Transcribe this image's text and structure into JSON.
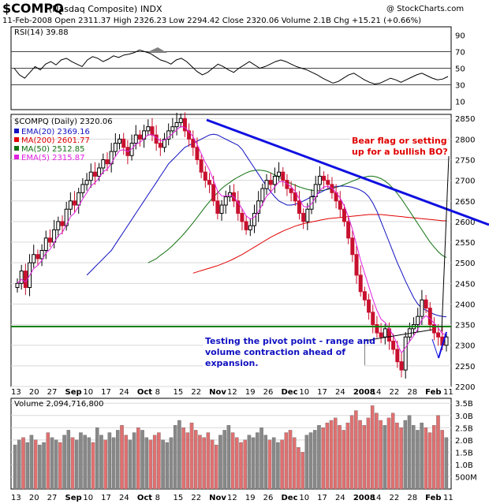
{
  "header": {
    "symbol": "$COMPQ",
    "name": "(Nasdaq Composite)",
    "exchange": "INDX",
    "watermark": "@ StockCharts.com",
    "ohlc_line": "11-Feb-2008   Open 2311.37   High 2326.23   Low 2294.42   Close 2320.06   Volume 2.1B   Chg +15.21 (+0.66%)",
    "accent_up": "#000000",
    "accent_down": "#c8102e"
  },
  "rsi_panel": {
    "label": "RSI(14) 39.88",
    "levels": [
      "90",
      "70",
      "50",
      "30",
      "10"
    ],
    "values": [
      50,
      42,
      38,
      45,
      52,
      48,
      55,
      58,
      54,
      60,
      62,
      58,
      55,
      52,
      60,
      64,
      62,
      58,
      61,
      65,
      63,
      66,
      67,
      69,
      72,
      70,
      68,
      64,
      60,
      58,
      55,
      60,
      62,
      58,
      52,
      46,
      42,
      45,
      50,
      55,
      52,
      48,
      45,
      50,
      54,
      58,
      54,
      50,
      52,
      55,
      58,
      60,
      58,
      55,
      52,
      50,
      48,
      45,
      42,
      38,
      35,
      32,
      34,
      38,
      42,
      44,
      40,
      36,
      33,
      31,
      32,
      35,
      38,
      36,
      33,
      36,
      39,
      42,
      44,
      41,
      38,
      36,
      37,
      40
    ]
  },
  "price_panel": {
    "label": "$COMPQ (Daily) 2320.06",
    "legend": [
      {
        "text": "EMA(20) 2369.16",
        "color": "#1010c0"
      },
      {
        "text": "MA(200) 2601.77",
        "color": "#e00000"
      },
      {
        "text": "MA(50) 2512.85",
        "color": "#107010"
      },
      {
        "text": "EMA(5) 2315.87",
        "color": "#e020e0"
      }
    ],
    "y_ticks": [
      "2850",
      "2800",
      "2750",
      "2700",
      "2650",
      "2600",
      "2550",
      "2500",
      "2450",
      "2400",
      "2350",
      "2300",
      "2250",
      "2200"
    ],
    "annotation_top": [
      "Bear flag or setting",
      "up for a bullish BO?"
    ],
    "annotation_bottom": [
      "Testing the pivot point - range and",
      "volume contraction ahead of",
      "expansion."
    ]
  },
  "volume_panel": {
    "label": "Volume 2,094,716,800",
    "y_ticks": [
      "3.5B",
      "3.0B",
      "2.5B",
      "2.0B",
      "1.5B",
      "1.0B",
      "500M"
    ]
  },
  "x_axis": {
    "labels": [
      "13",
      "20",
      "27",
      "Sep",
      "10",
      "17",
      "24",
      "Oct",
      "8",
      "15",
      "22",
      "Nov",
      "12",
      "19",
      "26",
      "Dec",
      "10",
      "17",
      "24",
      "2008",
      "14",
      "22",
      "28",
      "Feb",
      "11"
    ]
  },
  "chart_data": {
    "type": "candlestick",
    "x_labels": [
      "13",
      "20",
      "27",
      "Sep",
      "10",
      "17",
      "24",
      "Oct",
      "8",
      "15",
      "22",
      "Nov",
      "12",
      "19",
      "26",
      "Dec",
      "10",
      "17",
      "24",
      "2008",
      "14",
      "22",
      "28",
      "Feb",
      "11"
    ],
    "close": [
      2450,
      2480,
      2440,
      2500,
      2520,
      2510,
      2530,
      2560,
      2550,
      2580,
      2600,
      2590,
      2630,
      2650,
      2640,
      2670,
      2690,
      2700,
      2720,
      2710,
      2730,
      2750,
      2740,
      2770,
      2790,
      2800,
      2780,
      2760,
      2790,
      2810,
      2800,
      2820,
      2830,
      2810,
      2790,
      2780,
      2800,
      2820,
      2830,
      2840,
      2850,
      2820,
      2800,
      2780,
      2750,
      2720,
      2700,
      2690,
      2650,
      2620,
      2640,
      2660,
      2670,
      2650,
      2620,
      2600,
      2580,
      2590,
      2620,
      2650,
      2680,
      2700,
      2690,
      2710,
      2720,
      2700,
      2680,
      2670,
      2650,
      2620,
      2600,
      2630,
      2660,
      2690,
      2710,
      2700,
      2690,
      2670,
      2650,
      2630,
      2600,
      2560,
      2520,
      2470,
      2430,
      2410,
      2380,
      2350,
      2330,
      2320,
      2340,
      2310,
      2290,
      2260,
      2240,
      2320,
      2340,
      2350,
      2370,
      2410,
      2390,
      2350,
      2330,
      2320,
      2300,
      2320
    ],
    "ema20": [
      2470,
      2480,
      2490,
      2500,
      2510,
      2520,
      2530,
      2545,
      2560,
      2575,
      2590,
      2605,
      2620,
      2635,
      2650,
      2665,
      2680,
      2695,
      2710,
      2725,
      2740,
      2750,
      2760,
      2770,
      2780,
      2785,
      2790,
      2795,
      2800,
      2805,
      2810,
      2812,
      2810,
      2805,
      2800,
      2795,
      2790,
      2785,
      2775,
      2760,
      2745,
      2730,
      2715,
      2700,
      2685,
      2672,
      2660,
      2650,
      2645,
      2640,
      2640,
      2642,
      2645,
      2650,
      2655,
      2660,
      2665,
      2670,
      2675,
      2680,
      2683,
      2685,
      2686,
      2686,
      2685,
      2683,
      2680,
      2676,
      2670,
      2660,
      2645,
      2625,
      2600,
      2575,
      2550,
      2525,
      2500,
      2478,
      2455,
      2435,
      2415,
      2400,
      2390,
      2385,
      2380,
      2375,
      2372,
      2370,
      2369
    ],
    "ma50": [
      2500,
      2505,
      2510,
      2518,
      2525,
      2533,
      2542,
      2552,
      2562,
      2573,
      2585,
      2597,
      2610,
      2623,
      2636,
      2648,
      2660,
      2670,
      2680,
      2688,
      2695,
      2702,
      2708,
      2713,
      2718,
      2722,
      2724,
      2725,
      2724,
      2722,
      2718,
      2713,
      2708,
      2702,
      2697,
      2692,
      2688,
      2684,
      2681,
      2678,
      2676,
      2675,
      2675,
      2676,
      2678,
      2680,
      2683,
      2686,
      2690,
      2694,
      2698,
      2702,
      2706,
      2708,
      2710,
      2710,
      2708,
      2704,
      2698,
      2690,
      2680,
      2668,
      2655,
      2640,
      2625,
      2610,
      2595,
      2580,
      2565,
      2550,
      2538,
      2527,
      2518,
      2513
    ],
    "ma200": [
      2475,
      2478,
      2481,
      2484,
      2487,
      2490,
      2493,
      2497,
      2501,
      2505,
      2510,
      2515,
      2520,
      2526,
      2532,
      2538,
      2544,
      2550,
      2556,
      2562,
      2567,
      2572,
      2577,
      2581,
      2585,
      2589,
      2592,
      2595,
      2597,
      2599,
      2601,
      2603,
      2605,
      2607,
      2608,
      2609,
      2610,
      2611,
      2612,
      2613,
      2614,
      2615,
      2616,
      2617,
      2617,
      2617,
      2617,
      2616,
      2615,
      2614,
      2613,
      2612,
      2611,
      2610,
      2609,
      2608,
      2607,
      2606,
      2605,
      2604,
      2603,
      2602,
      2602
    ],
    "volume_billions": [
      1.8,
      2.0,
      2.1,
      1.9,
      2.2,
      2.0,
      1.8,
      1.9,
      2.3,
      2.1,
      2.0,
      1.9,
      2.2,
      2.4,
      2.1,
      2.0,
      2.3,
      2.2,
      2.1,
      1.9,
      2.5,
      2.2,
      2.0,
      2.3,
      2.1,
      2.4,
      2.6,
      2.2,
      2.0,
      2.3,
      2.5,
      2.4,
      2.1,
      2.0,
      2.2,
      2.3,
      2.0,
      1.9,
      2.1,
      2.6,
      2.8,
      2.5,
      2.3,
      2.7,
      2.4,
      2.2,
      2.1,
      2.3,
      2.0,
      1.8,
      2.2,
      2.4,
      2.6,
      2.3,
      2.1,
      1.9,
      2.0,
      2.2,
      2.1,
      2.3,
      2.5,
      2.2,
      2.0,
      2.1,
      1.9,
      2.0,
      2.3,
      2.4,
      2.1,
      1.7,
      1.5,
      2.2,
      2.3,
      2.4,
      2.6,
      2.5,
      2.7,
      2.8,
      2.9,
      2.6,
      2.4,
      2.7,
      3.0,
      3.2,
      2.8,
      2.6,
      2.9,
      3.4,
      3.1,
      2.8,
      2.6,
      2.9,
      3.1,
      2.7,
      2.5,
      2.8,
      3.0,
      2.6,
      2.4,
      2.7,
      2.5,
      2.3,
      2.6,
      3.0,
      2.4,
      2.1
    ],
    "ylim": [
      2200,
      2860
    ],
    "rsi_levels": [
      30,
      50,
      70
    ],
    "trendline_down": {
      "from": [
        11,
        2860
      ],
      "to": [
        25,
        2630
      ]
    },
    "support_line": 2320
  }
}
